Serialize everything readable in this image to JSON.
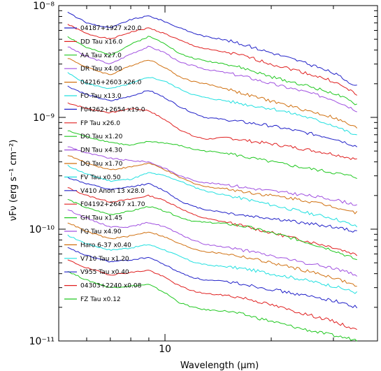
{
  "chart_data": {
    "type": "line",
    "title": "",
    "xlabel": "Wavelength (μm)",
    "ylabel": "νFν (erg s⁻¹ cm⁻²)",
    "xscale": "log",
    "yscale": "log",
    "xlim": [
      5.0,
      40.0
    ],
    "ylim": [
      1e-11,
      1e-08
    ],
    "x_ticks": [
      {
        "value": 10,
        "label": "10"
      }
    ],
    "y_ticks": [
      {
        "value": 1e-08,
        "label": "10⁻⁸"
      },
      {
        "value": 1e-09,
        "label": "10⁻⁹"
      },
      {
        "value": 1e-10,
        "label": "10⁻¹⁰"
      },
      {
        "value": 1e-11,
        "label": "10⁻¹¹"
      }
    ],
    "legend_position": "left",
    "grid": false,
    "series": [
      {
        "name": "04187+1927 x20.0",
        "color": "#2020c8",
        "x": [
          5.3,
          6,
          7,
          8,
          9,
          10,
          11,
          12,
          13,
          15,
          17,
          20,
          24,
          30,
          35
        ],
        "y": [
          8.7e-09,
          7e-09,
          6.3e-09,
          7.5e-09,
          8.1e-09,
          7.2e-09,
          6.3e-09,
          5.7e-09,
          5.3e-09,
          4.9e-09,
          4.4e-09,
          3.8e-09,
          3.2e-09,
          2.5e-09,
          1.9e-09
        ]
      },
      {
        "name": "DD Tau x16.0",
        "color": "#e02020",
        "x": [
          5.3,
          6,
          7,
          8,
          9,
          10,
          11,
          12,
          13,
          15,
          17,
          20,
          24,
          30,
          35
        ],
        "y": [
          6.8e-09,
          5.6e-09,
          5e-09,
          5.8e-09,
          6.3e-09,
          5.6e-09,
          4.9e-09,
          4.4e-09,
          4.1e-09,
          3.8e-09,
          3.5e-09,
          3e-09,
          2.6e-09,
          2.1e-09,
          1.6e-09
        ]
      },
      {
        "name": "AA Tau x27.0",
        "color": "#20c820",
        "x": [
          5.3,
          6,
          7,
          8,
          9,
          10,
          11,
          12,
          13,
          15,
          17,
          20,
          24,
          30,
          35
        ],
        "y": [
          5.3e-09,
          4.2e-09,
          3.6e-09,
          4.5e-09,
          5.3e-09,
          4.6e-09,
          3.7e-09,
          3.4e-09,
          3.2e-09,
          3e-09,
          2.7e-09,
          2.3e-09,
          2e-09,
          1.65e-09,
          1.3e-09
        ]
      },
      {
        "name": "DR Tau x4.00",
        "color": "#a050e0",
        "x": [
          5.3,
          6,
          7,
          8,
          9,
          10,
          11,
          12,
          13,
          15,
          17,
          20,
          24,
          30,
          35
        ],
        "y": [
          4.3e-09,
          3.5e-09,
          3e-09,
          3.7e-09,
          4.3e-09,
          3.8e-09,
          3.1e-09,
          2.9e-09,
          2.7e-09,
          2.5e-09,
          2.3e-09,
          2e-09,
          1.75e-09,
          1.45e-09,
          1.15e-09
        ]
      },
      {
        "name": "04216+2603 x26.0",
        "color": "#d07010",
        "x": [
          5.3,
          6,
          7,
          8,
          9,
          10,
          11,
          12,
          13,
          15,
          17,
          20,
          24,
          30,
          35
        ],
        "y": [
          3.4e-09,
          2.8e-09,
          2.4e-09,
          2.9e-09,
          3.3e-09,
          2.8e-09,
          2.3e-09,
          2.1e-09,
          2e-09,
          1.8e-09,
          1.6e-09,
          1.4e-09,
          1.2e-09,
          1e-09,
          8e-10
        ]
      },
      {
        "name": "FO Tau x13.0",
        "color": "#20e0e0",
        "x": [
          5.3,
          6,
          7,
          8,
          9,
          10,
          11,
          12,
          13,
          15,
          17,
          20,
          24,
          30,
          35
        ],
        "y": [
          2.5e-09,
          2e-09,
          1.8e-09,
          2e-09,
          2.3e-09,
          2.1e-09,
          1.8e-09,
          1.6e-09,
          1.5e-09,
          1.4e-09,
          1.3e-09,
          1.2e-09,
          1.05e-09,
          8.5e-10,
          6.8e-10
        ]
      },
      {
        "name": "F04262+2654 x19.0",
        "color": "#2020c8",
        "x": [
          5.3,
          6,
          7,
          8,
          9,
          10,
          11,
          12,
          13,
          15,
          17,
          20,
          24,
          30,
          35
        ],
        "y": [
          1.9e-09,
          1.6e-09,
          1.4e-09,
          1.55e-09,
          1.75e-09,
          1.5e-09,
          1.25e-09,
          1.1e-09,
          1e-09,
          9.5e-10,
          9e-10,
          8.4e-10,
          7.5e-10,
          6.5e-10,
          5.5e-10
        ]
      },
      {
        "name": "FP Tau x26.0",
        "color": "#e02020",
        "x": [
          5.3,
          6,
          7,
          8,
          9,
          10,
          11,
          12,
          13,
          15,
          17,
          20,
          24,
          30,
          35
        ],
        "y": [
          1.35e-09,
          1.2e-09,
          1.1e-09,
          1.2e-09,
          1.15e-09,
          9.5e-10,
          7.8e-10,
          6.8e-10,
          6.4e-10,
          6.6e-10,
          6.2e-10,
          5.8e-10,
          5.3e-10,
          4.7e-10,
          4.2e-10
        ]
      },
      {
        "name": "DO Tau x1.20",
        "color": "#20c820",
        "x": [
          5.3,
          6,
          7,
          8,
          9,
          10,
          11,
          12,
          13,
          15,
          17,
          20,
          24,
          30,
          35
        ],
        "y": [
          7.6e-10,
          6.7e-10,
          6e-10,
          5.6e-10,
          6.1e-10,
          5.9e-10,
          5.6e-10,
          5.2e-10,
          5e-10,
          4.8e-10,
          4.4e-10,
          4e-10,
          3.6e-10,
          3.2e-10,
          2.9e-10
        ]
      },
      {
        "name": "DN Tau x4.30",
        "color": "#a050e0",
        "x": [
          5.3,
          6,
          7,
          8,
          9,
          10,
          11,
          12,
          13,
          15,
          17,
          20,
          24,
          30,
          35
        ],
        "y": [
          5.5e-10,
          4.8e-10,
          4.3e-10,
          4.1e-10,
          4e-10,
          3.5e-10,
          3e-10,
          2.75e-10,
          2.6e-10,
          2.5e-10,
          2.35e-10,
          2.2e-10,
          2.05e-10,
          1.85e-10,
          1.65e-10
        ]
      },
      {
        "name": "DQ Tau x1.70",
        "color": "#d07010",
        "x": [
          5.3,
          6,
          7,
          8,
          9,
          10,
          11,
          12,
          13,
          15,
          17,
          20,
          24,
          30,
          35
        ],
        "y": [
          4.6e-10,
          3.9e-10,
          3.4e-10,
          3.6e-10,
          3.9e-10,
          3.4e-10,
          2.9e-10,
          2.6e-10,
          2.4e-10,
          2.3e-10,
          2.15e-10,
          2e-10,
          1.85e-10,
          1.6e-10,
          1.4e-10
        ]
      },
      {
        "name": "FV Tau x0.50",
        "color": "#20e0e0",
        "x": [
          5.3,
          6,
          7,
          8,
          9,
          10,
          11,
          12,
          13,
          15,
          17,
          20,
          24,
          30,
          35
        ],
        "y": [
          3.7e-10,
          3.1e-10,
          2.7e-10,
          2.8e-10,
          3.2e-10,
          3e-10,
          2.7e-10,
          2.4e-10,
          2.2e-10,
          2e-10,
          1.85e-10,
          1.65e-10,
          1.45e-10,
          1.25e-10,
          1.05e-10
        ]
      },
      {
        "name": "V410 Anon 13 x28.0",
        "color": "#2020c8",
        "x": [
          5.3,
          6,
          7,
          8,
          9,
          10,
          11,
          12,
          13,
          15,
          17,
          20,
          24,
          30,
          35
        ],
        "y": [
          2.9e-10,
          2.55e-10,
          2.25e-10,
          2.4e-10,
          2.55e-10,
          2.2e-10,
          1.8e-10,
          1.6e-10,
          1.5e-10,
          1.4e-10,
          1.32e-10,
          1.25e-10,
          1.15e-10,
          1.05e-10,
          9.5e-11
        ]
      },
      {
        "name": "F04192+2647 x1.70",
        "color": "#e02020",
        "x": [
          5.3,
          6,
          7,
          8,
          9,
          10,
          11,
          12,
          13,
          15,
          17,
          20,
          24,
          30,
          35
        ],
        "y": [
          2.35e-10,
          2e-10,
          1.75e-10,
          1.85e-10,
          2e-10,
          1.8e-10,
          1.55e-10,
          1.35e-10,
          1.25e-10,
          1.15e-10,
          1.05e-10,
          9.3e-11,
          8.1e-11,
          6.9e-11,
          5.9e-11
        ]
      },
      {
        "name": "GH Tau x1.45",
        "color": "#20c820",
        "x": [
          5.3,
          6,
          7,
          8,
          9,
          10,
          11,
          12,
          13,
          15,
          17,
          20,
          24,
          30,
          35
        ],
        "y": [
          1.85e-10,
          1.55e-10,
          1.35e-10,
          1.45e-10,
          1.6e-10,
          1.45e-10,
          1.28e-10,
          1.18e-10,
          1.15e-10,
          1.12e-10,
          1.05e-10,
          9.3e-11,
          8e-11,
          6.5e-11,
          5.3e-11
        ]
      },
      {
        "name": "FQ Tau x4.90",
        "color": "#a050e0",
        "x": [
          5.3,
          6,
          7,
          8,
          9,
          10,
          11,
          12,
          13,
          15,
          17,
          20,
          24,
          30,
          35
        ],
        "y": [
          1.5e-10,
          1.25e-10,
          1.05e-10,
          1.05e-10,
          1.15e-10,
          1.05e-10,
          9e-11,
          8e-11,
          7.3e-11,
          6.9e-11,
          6.4e-11,
          5.8e-11,
          5.1e-11,
          4.5e-11,
          3.9e-11
        ]
      },
      {
        "name": "Haro 6-37 x0.40",
        "color": "#d07010",
        "x": [
          5.3,
          6,
          7,
          8,
          9,
          10,
          11,
          12,
          13,
          15,
          17,
          20,
          24,
          30,
          35
        ],
        "y": [
          1.15e-10,
          9.5e-11,
          8.2e-11,
          8.7e-11,
          9.5e-11,
          8.5e-11,
          7.4e-11,
          6.7e-11,
          6.3e-11,
          6e-11,
          5.6e-11,
          5e-11,
          4.4e-11,
          3.7e-11,
          3.1e-11
        ]
      },
      {
        "name": "V710 Tau x1.20",
        "color": "#20e0e0",
        "x": [
          5.3,
          6,
          7,
          8,
          9,
          10,
          11,
          12,
          13,
          15,
          17,
          20,
          24,
          30,
          35
        ],
        "y": [
          8.8e-11,
          7.4e-11,
          6.5e-11,
          6.8e-11,
          7.3e-11,
          6.5e-11,
          5.7e-11,
          5.1e-11,
          4.8e-11,
          4.6e-11,
          4.4e-11,
          4e-11,
          3.6e-11,
          3.1e-11,
          2.7e-11
        ]
      },
      {
        "name": "V955 Tau x0.40",
        "color": "#2020c8",
        "x": [
          5.3,
          6,
          7,
          8,
          9,
          10,
          11,
          12,
          13,
          15,
          17,
          20,
          24,
          30,
          35
        ],
        "y": [
          6.8e-11,
          5.8e-11,
          5.1e-11,
          5.3e-11,
          5.6e-11,
          4.8e-11,
          4.1e-11,
          3.7e-11,
          3.5e-11,
          3.4e-11,
          3.2e-11,
          2.9e-11,
          2.6e-11,
          2.3e-11,
          2e-11
        ]
      },
      {
        "name": "04303+2240 x0.08",
        "color": "#e02020",
        "x": [
          5.3,
          6,
          7,
          8,
          9,
          10,
          11,
          12,
          13,
          15,
          17,
          20,
          24,
          30,
          35
        ],
        "y": [
          5.3e-11,
          4.5e-11,
          3.9e-11,
          4.1e-11,
          4.3e-11,
          3.7e-11,
          3.1e-11,
          2.8e-11,
          2.65e-11,
          2.55e-11,
          2.4e-11,
          2.1e-11,
          1.8e-11,
          1.5e-11,
          1.25e-11
        ]
      },
      {
        "name": "FZ Tau x0.12",
        "color": "#20c820",
        "x": [
          5.3,
          6,
          7,
          8,
          9,
          10,
          11,
          12,
          13,
          15,
          17,
          20,
          24,
          30,
          35
        ],
        "y": [
          4.2e-11,
          3.5e-11,
          3e-11,
          3.1e-11,
          3.2e-11,
          2.7e-11,
          2.2e-11,
          2e-11,
          1.9e-11,
          1.85e-11,
          1.7e-11,
          1.5e-11,
          1.3e-11,
          1.12e-11,
          1.02e-11
        ]
      }
    ]
  }
}
